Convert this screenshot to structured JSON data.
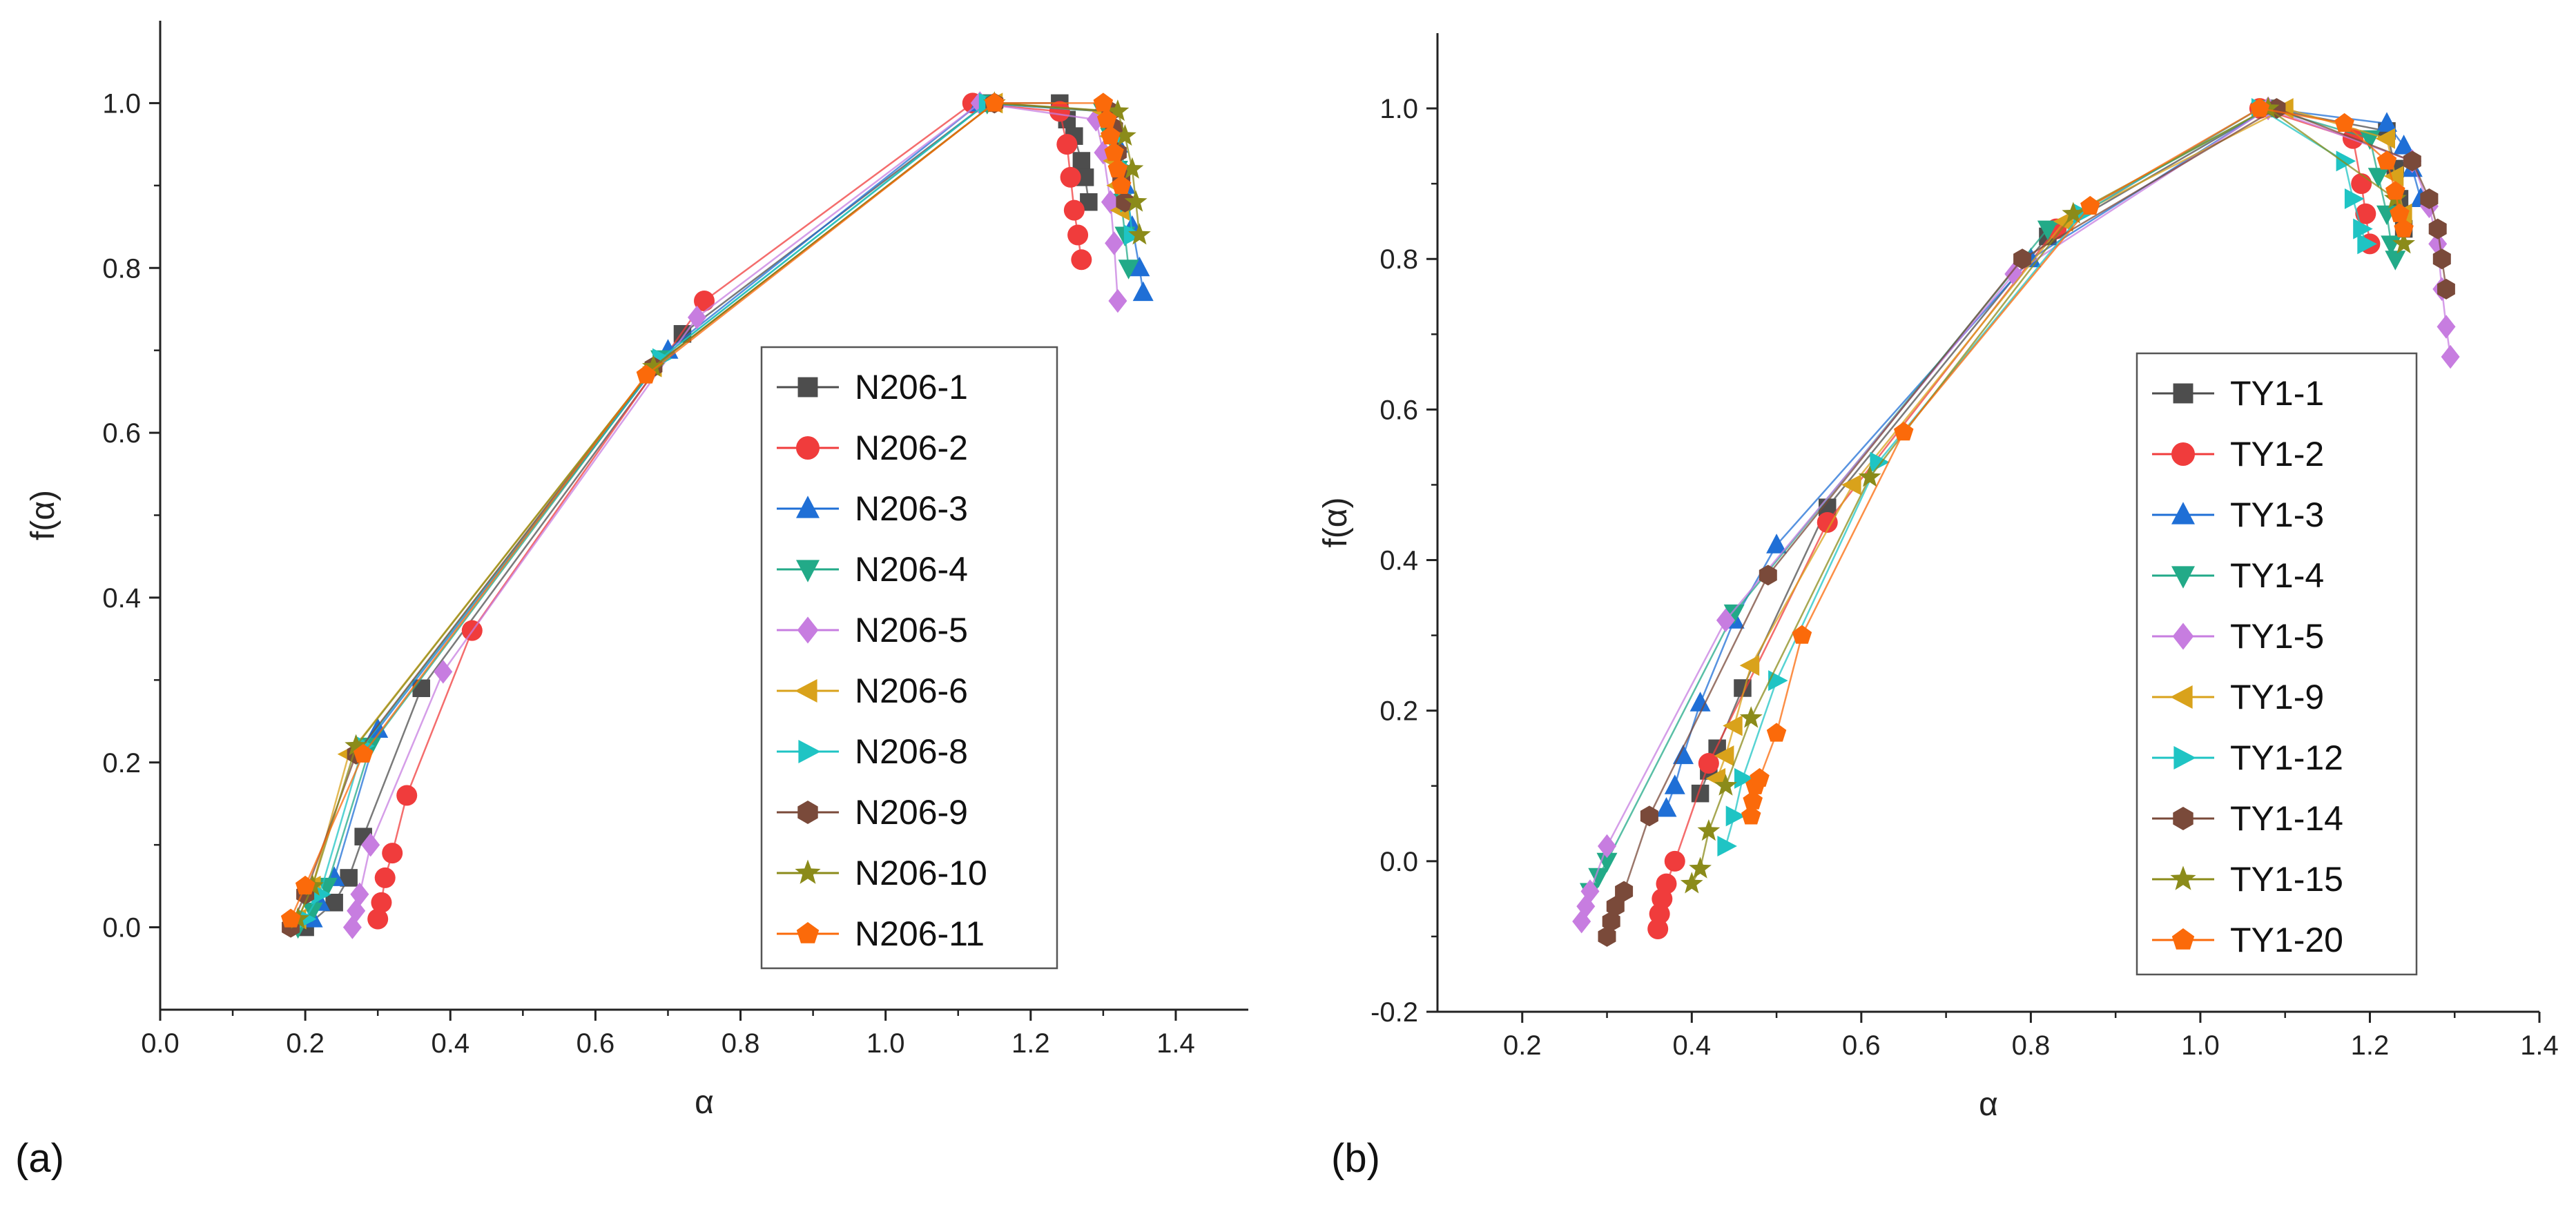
{
  "chart_data": [
    {
      "type": "line",
      "panel_label": "(a)",
      "xlabel": "α",
      "ylabel": "f(α)",
      "xlim": [
        0.0,
        1.5
      ],
      "ylim": [
        -0.1,
        1.1
      ],
      "xticks": [
        "0.0",
        "0.2",
        "0.4",
        "0.6",
        "0.8",
        "1.0",
        "1.2",
        "1.4"
      ],
      "yticks": [
        "0.0",
        "0.2",
        "0.4",
        "0.6",
        "0.8",
        "1.0"
      ],
      "legend_position": "right-middle",
      "series": [
        {
          "name": "N206-1",
          "color": "#4d4d4d",
          "marker": "square",
          "x": [
            0.2,
            0.24,
            0.26,
            0.28,
            0.36,
            0.72,
            1.14,
            1.24,
            1.25,
            1.26,
            1.27,
            1.275,
            1.28
          ],
          "y": [
            0.0,
            0.03,
            0.06,
            0.11,
            0.29,
            0.72,
            1.0,
            1.0,
            0.98,
            0.96,
            0.93,
            0.91,
            0.88
          ]
        },
        {
          "name": "N206-2",
          "color": "#f03c3c",
          "marker": "circle",
          "x": [
            0.3,
            0.305,
            0.31,
            0.32,
            0.34,
            0.43,
            0.75,
            1.12,
            1.24,
            1.25,
            1.255,
            1.26,
            1.265,
            1.27
          ],
          "y": [
            0.01,
            0.03,
            0.06,
            0.09,
            0.16,
            0.36,
            0.76,
            1.0,
            0.99,
            0.95,
            0.91,
            0.87,
            0.84,
            0.81
          ]
        },
        {
          "name": "N206-3",
          "color": "#1f6fd6",
          "marker": "triangle-up",
          "x": [
            0.21,
            0.22,
            0.24,
            0.3,
            0.7,
            1.13,
            1.3,
            1.32,
            1.33,
            1.34,
            1.35,
            1.355
          ],
          "y": [
            0.01,
            0.03,
            0.06,
            0.24,
            0.7,
            1.0,
            0.99,
            0.95,
            0.9,
            0.85,
            0.8,
            0.77
          ]
        },
        {
          "name": "N206-4",
          "color": "#22aa88",
          "marker": "triangle-down",
          "x": [
            0.19,
            0.21,
            0.23,
            0.29,
            0.69,
            1.14,
            1.3,
            1.31,
            1.32,
            1.325,
            1.33,
            1.335
          ],
          "y": [
            0.0,
            0.02,
            0.05,
            0.22,
            0.69,
            1.0,
            0.99,
            0.96,
            0.92,
            0.88,
            0.84,
            0.8
          ]
        },
        {
          "name": "N206-5",
          "color": "#c77de0",
          "marker": "diamond",
          "x": [
            0.265,
            0.27,
            0.275,
            0.29,
            0.39,
            0.74,
            1.13,
            1.29,
            1.3,
            1.31,
            1.315,
            1.32
          ],
          "y": [
            0.0,
            0.02,
            0.04,
            0.1,
            0.31,
            0.74,
            1.0,
            0.98,
            0.94,
            0.88,
            0.83,
            0.76
          ]
        },
        {
          "name": "N206-6",
          "color": "#d9a21b",
          "marker": "triangle-left",
          "x": [
            0.19,
            0.21,
            0.26,
            0.68,
            1.15,
            1.3,
            1.31,
            1.315,
            1.32,
            1.325
          ],
          "y": [
            0.01,
            0.05,
            0.21,
            0.68,
            1.0,
            0.99,
            0.96,
            0.93,
            0.9,
            0.87
          ]
        },
        {
          "name": "N206-8",
          "color": "#1fc4c4",
          "marker": "triangle-right",
          "x": [
            0.2,
            0.22,
            0.28,
            0.69,
            1.14,
            1.31,
            1.32,
            1.33,
            1.335,
            1.34
          ],
          "y": [
            0.01,
            0.04,
            0.22,
            0.69,
            1.0,
            0.99,
            0.96,
            0.92,
            0.88,
            0.84
          ]
        },
        {
          "name": "N206-9",
          "color": "#7a4a3a",
          "marker": "hexagon",
          "x": [
            0.18,
            0.2,
            0.27,
            0.68,
            1.15,
            1.31,
            1.315,
            1.32,
            1.325,
            1.33
          ],
          "y": [
            0.0,
            0.04,
            0.21,
            0.68,
            1.0,
            0.99,
            0.97,
            0.94,
            0.91,
            0.88
          ]
        },
        {
          "name": "N206-10",
          "color": "#8b8b1a",
          "marker": "star",
          "x": [
            0.19,
            0.21,
            0.27,
            0.68,
            1.15,
            1.32,
            1.33,
            1.34,
            1.345,
            1.35
          ],
          "y": [
            0.01,
            0.05,
            0.22,
            0.68,
            1.0,
            0.99,
            0.96,
            0.92,
            0.88,
            0.84
          ]
        },
        {
          "name": "N206-11",
          "color": "#fb6a0a",
          "marker": "pentagon",
          "x": [
            0.18,
            0.2,
            0.28,
            0.67,
            1.15,
            1.3,
            1.305,
            1.31,
            1.315,
            1.32,
            1.325
          ],
          "y": [
            0.01,
            0.05,
            0.21,
            0.67,
            1.0,
            1.0,
            0.98,
            0.96,
            0.94,
            0.92,
            0.9
          ]
        }
      ]
    },
    {
      "type": "line",
      "panel_label": "(b)",
      "xlabel": "α",
      "ylabel": "f(α)",
      "xlim": [
        0.1,
        1.4
      ],
      "ylim": [
        -0.2,
        1.1
      ],
      "xticks": [
        "0.2",
        "0.4",
        "0.6",
        "0.8",
        "1.0",
        "1.2",
        "1.4"
      ],
      "yticks": [
        "-0.2",
        "0.0",
        "0.2",
        "0.4",
        "0.6",
        "0.8",
        "1.0"
      ],
      "legend_position": "right-middle",
      "series": [
        {
          "name": "TY1-1",
          "color": "#4d4d4d",
          "marker": "square",
          "x": [
            0.41,
            0.42,
            0.43,
            0.46,
            0.56,
            0.82,
            1.08,
            1.22,
            1.23,
            1.235,
            1.24
          ],
          "y": [
            0.09,
            0.12,
            0.15,
            0.23,
            0.47,
            0.83,
            1.0,
            0.97,
            0.92,
            0.88,
            0.84
          ]
        },
        {
          "name": "TY1-2",
          "color": "#f03c3c",
          "marker": "circle",
          "x": [
            0.36,
            0.362,
            0.365,
            0.37,
            0.38,
            0.42,
            0.56,
            0.83,
            1.07,
            1.18,
            1.19,
            1.195,
            1.2
          ],
          "y": [
            -0.09,
            -0.07,
            -0.05,
            -0.03,
            0.0,
            0.13,
            0.45,
            0.84,
            1.0,
            0.96,
            0.9,
            0.86,
            0.82
          ]
        },
        {
          "name": "TY1-3",
          "color": "#1f6fd6",
          "marker": "triangle-up",
          "x": [
            0.37,
            0.38,
            0.39,
            0.41,
            0.45,
            0.5,
            0.8,
            1.08,
            1.22,
            1.24,
            1.25,
            1.26
          ],
          "y": [
            0.07,
            0.1,
            0.14,
            0.21,
            0.32,
            0.42,
            0.8,
            1.0,
            0.98,
            0.95,
            0.92,
            0.88
          ]
        },
        {
          "name": "TY1-4",
          "color": "#22aa88",
          "marker": "triangle-down",
          "x": [
            0.28,
            0.29,
            0.3,
            0.45,
            0.82,
            1.08,
            1.2,
            1.21,
            1.22,
            1.225,
            1.23
          ],
          "y": [
            -0.04,
            -0.02,
            0.0,
            0.33,
            0.84,
            1.0,
            0.96,
            0.91,
            0.86,
            0.82,
            0.8
          ]
        },
        {
          "name": "TY1-5",
          "color": "#c77de0",
          "marker": "diamond",
          "x": [
            0.27,
            0.275,
            0.28,
            0.3,
            0.44,
            0.78,
            1.08,
            1.25,
            1.27,
            1.28,
            1.285,
            1.29,
            1.295
          ],
          "y": [
            -0.08,
            -0.06,
            -0.04,
            0.02,
            0.32,
            0.78,
            1.0,
            0.93,
            0.87,
            0.82,
            0.76,
            0.71,
            0.67
          ]
        },
        {
          "name": "TY1-9",
          "color": "#d9a21b",
          "marker": "triangle-left",
          "x": [
            0.43,
            0.44,
            0.45,
            0.47,
            0.59,
            0.84,
            1.1,
            1.22,
            1.23,
            1.24
          ],
          "y": [
            0.11,
            0.14,
            0.18,
            0.26,
            0.5,
            0.85,
            1.0,
            0.96,
            0.91,
            0.86
          ]
        },
        {
          "name": "TY1-12",
          "color": "#1fc4c4",
          "marker": "triangle-right",
          "x": [
            0.44,
            0.45,
            0.46,
            0.5,
            0.62,
            0.86,
            1.07,
            1.17,
            1.18,
            1.19,
            1.195
          ],
          "y": [
            0.02,
            0.06,
            0.11,
            0.24,
            0.53,
            0.86,
            1.0,
            0.93,
            0.88,
            0.84,
            0.82
          ]
        },
        {
          "name": "TY1-14",
          "color": "#7a4a3a",
          "marker": "hexagon",
          "x": [
            0.3,
            0.305,
            0.31,
            0.32,
            0.35,
            0.49,
            0.79,
            1.09,
            1.25,
            1.27,
            1.28,
            1.285,
            1.29
          ],
          "y": [
            -0.1,
            -0.08,
            -0.06,
            -0.04,
            0.06,
            0.38,
            0.8,
            1.0,
            0.93,
            0.88,
            0.84,
            0.8,
            0.76
          ]
        },
        {
          "name": "TY1-15",
          "color": "#8b8b1a",
          "marker": "star",
          "x": [
            0.4,
            0.41,
            0.42,
            0.44,
            0.47,
            0.61,
            0.85,
            1.08,
            1.23,
            1.24
          ],
          "y": [
            -0.03,
            -0.01,
            0.04,
            0.1,
            0.19,
            0.51,
            0.86,
            1.0,
            0.88,
            0.82
          ]
        },
        {
          "name": "TY1-20",
          "color": "#fb6a0a",
          "marker": "pentagon",
          "x": [
            0.47,
            0.472,
            0.475,
            0.48,
            0.5,
            0.53,
            0.65,
            0.87,
            1.07,
            1.17,
            1.22,
            1.23,
            1.235,
            1.24
          ],
          "y": [
            0.06,
            0.08,
            0.1,
            0.11,
            0.17,
            0.3,
            0.57,
            0.87,
            1.0,
            0.98,
            0.93,
            0.89,
            0.86,
            0.84
          ]
        }
      ]
    }
  ]
}
